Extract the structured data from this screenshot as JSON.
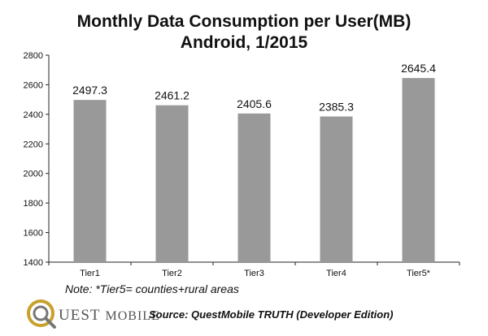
{
  "chart_data": {
    "type": "bar",
    "title": "Monthly Data Consumption per User(MB)",
    "subtitle": "Android, 1/2015",
    "categories": [
      "Tier1",
      "Tier2",
      "Tier3",
      "Tier4",
      "Tier5*"
    ],
    "values": [
      2497.3,
      2461.2,
      2405.6,
      2385.3,
      2645.4
    ],
    "value_labels": [
      "2497.3",
      "2461.2",
      "2405.6",
      "2385.3",
      "2645.4"
    ],
    "ylim": [
      1400,
      2800
    ],
    "yticks": [
      1400,
      1600,
      1800,
      2000,
      2200,
      2400,
      2600,
      2800
    ],
    "xlabel": "",
    "ylabel": "",
    "grid": false,
    "bar_color": "#999999"
  },
  "note": "Note: *Tier5= counties+rural areas",
  "brand": {
    "name_main": "UEST",
    "name_suffix": "MOBILE",
    "logo_letter": "Q"
  },
  "source": "Source: QuestMobile TRUTH (Developer Edition)",
  "colors": {
    "logo_gold": "#c8a12c",
    "logo_gray": "#777777"
  }
}
